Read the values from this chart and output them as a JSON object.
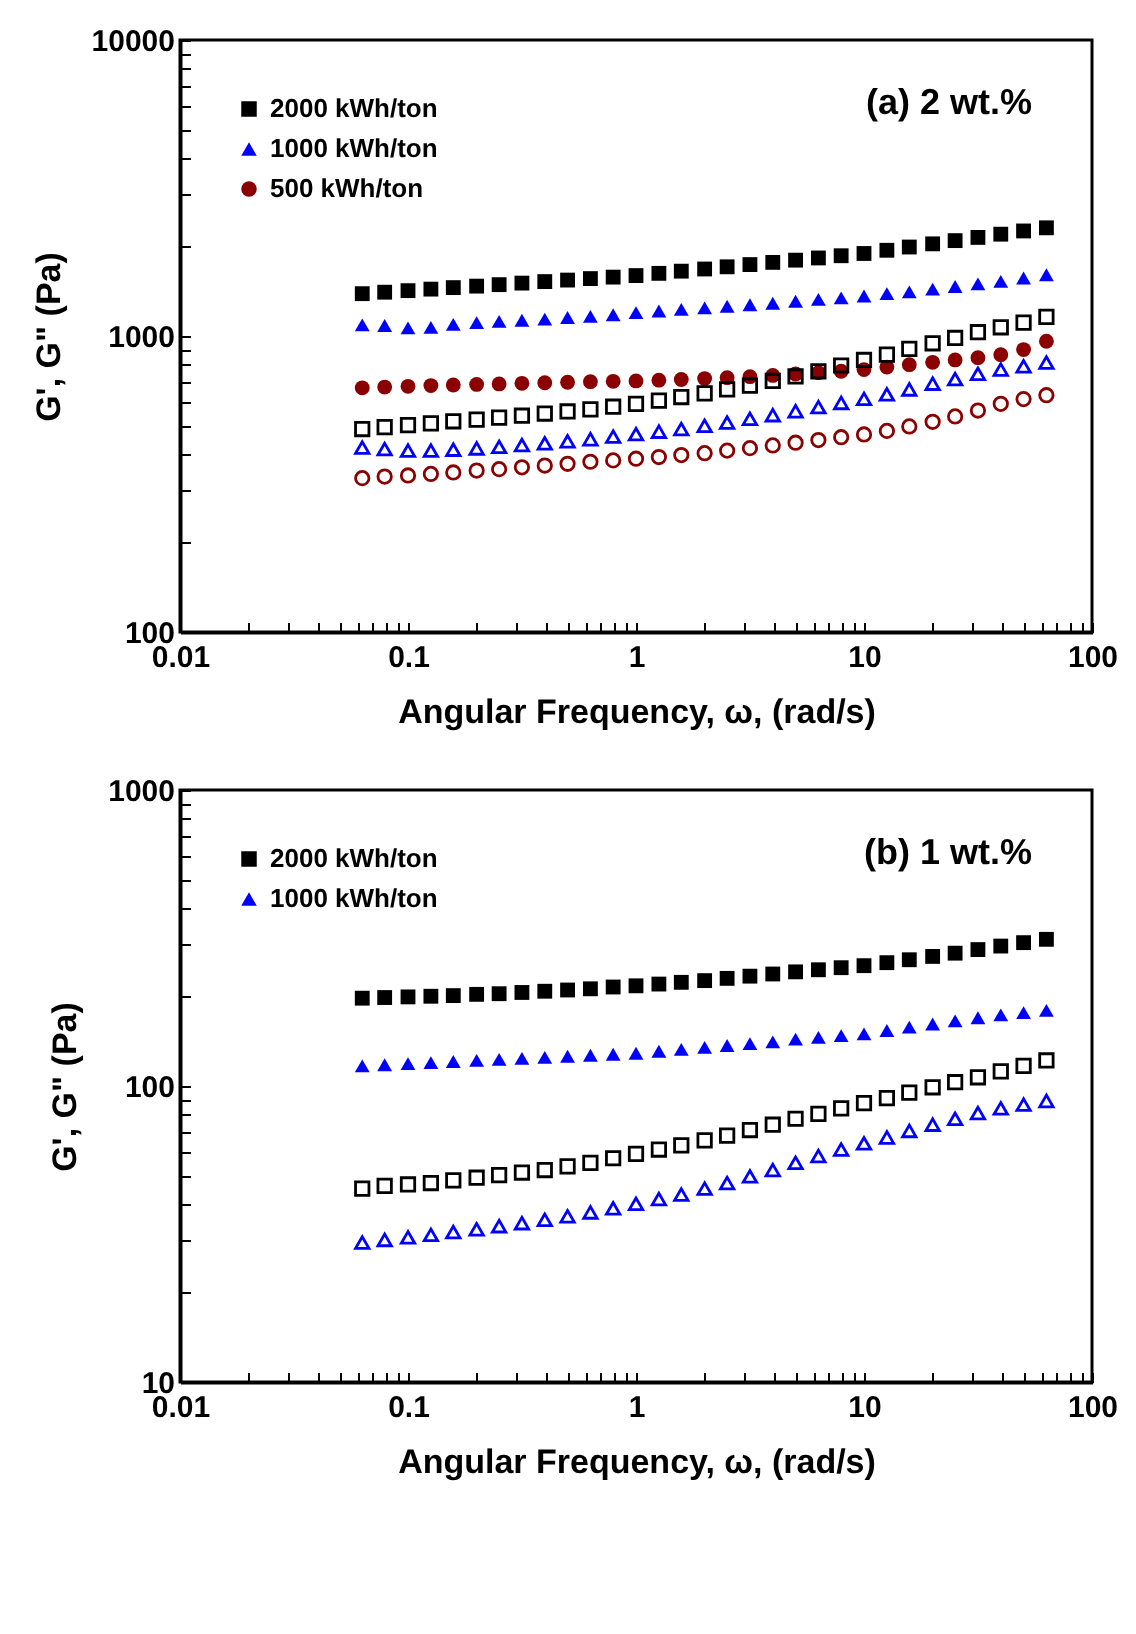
{
  "chart_data": [
    {
      "type": "scatter",
      "xlabel": "Angular Frequency, ω, (rad/s)",
      "ylabel": "G', G\" (Pa)",
      "annotations": [
        "(a) 2 wt.%"
      ],
      "log": "xy",
      "legend": "top left",
      "xlim": [
        0.01,
        100
      ],
      "ylim": [
        100,
        10000
      ],
      "xticks": [
        0.01,
        {
          "value": 0.02,
          "label": null
        },
        {
          "value": 0.03,
          "label": null
        },
        {
          "value": 0.04,
          "label": null
        },
        {
          "value": 0.05,
          "label": null
        },
        {
          "value": 0.06,
          "label": null
        },
        {
          "value": 0.07,
          "label": null
        },
        {
          "value": 0.08,
          "label": null
        },
        {
          "value": 0.09,
          "label": null
        },
        0.1,
        {
          "value": 0.2,
          "label": null
        },
        {
          "value": 0.3,
          "label": null
        },
        {
          "value": 0.4,
          "label": null
        },
        {
          "value": 0.5,
          "label": null
        },
        {
          "value": 0.6,
          "label": null
        },
        {
          "value": 0.7,
          "label": null
        },
        {
          "value": 0.8,
          "label": null
        },
        {
          "value": 0.9,
          "label": null
        },
        1,
        {
          "value": 2,
          "label": null
        },
        {
          "value": 3,
          "label": null
        },
        {
          "value": 4,
          "label": null
        },
        {
          "value": 5,
          "label": null
        },
        {
          "value": 6,
          "label": null
        },
        {
          "value": 7,
          "label": null
        },
        {
          "value": 8,
          "label": null
        },
        {
          "value": 9,
          "label": null
        },
        10,
        {
          "value": 20,
          "label": null
        },
        {
          "value": 30,
          "label": null
        },
        {
          "value": 40,
          "label": null
        },
        {
          "value": 50,
          "label": null
        },
        {
          "value": 60,
          "label": null
        },
        {
          "value": 70,
          "label": null
        },
        {
          "value": 80,
          "label": null
        },
        {
          "value": 90,
          "label": null
        },
        100
      ],
      "yticks": [
        100,
        {
          "value": 200,
          "label": null
        },
        {
          "value": 300,
          "label": null
        },
        {
          "value": 400,
          "label": null
        },
        {
          "value": 500,
          "label": null
        },
        {
          "value": 600,
          "label": null
        },
        {
          "value": 700,
          "label": null
        },
        {
          "value": 800,
          "label": null
        },
        {
          "value": 900,
          "label": null
        },
        1000,
        {
          "value": 2000,
          "label": null
        },
        {
          "value": 3000,
          "label": null
        },
        {
          "value": 4000,
          "label": null
        },
        {
          "value": 5000,
          "label": null
        },
        {
          "value": 6000,
          "label": null
        },
        {
          "value": 7000,
          "label": null
        },
        {
          "value": 8000,
          "label": null
        },
        {
          "value": 9000,
          "label": null
        },
        10000
      ],
      "x": [
        0.063,
        0.079,
        0.1,
        0.126,
        0.158,
        0.2,
        0.251,
        0.316,
        0.398,
        0.501,
        0.631,
        0.794,
        1,
        1.26,
        1.58,
        2,
        2.51,
        3.16,
        3.98,
        5.01,
        6.31,
        7.94,
        10,
        12.6,
        15.8,
        20,
        25.1,
        31.6,
        39.8,
        50.1,
        63.1
      ],
      "series": [
        {
          "name": "2000 kWh/ton",
          "color": "#000000",
          "marker": "square",
          "values": [
            1390,
            1406,
            1423,
            1440,
            1457,
            1474,
            1491,
            1509,
            1527,
            1545,
            1563,
            1581,
            1600,
            1628,
            1656,
            1684,
            1713,
            1743,
            1773,
            1804,
            1835,
            1867,
            1900,
            1948,
            1998,
            2048,
            2100,
            2153,
            2208,
            2264,
            2320
          ]
        },
        {
          "name": "1000 kWh/ton",
          "color": "#0000ff",
          "marker": "triangle",
          "values": [
            1090,
            1085,
            1065,
            1070,
            1095,
            1110,
            1120,
            1130,
            1140,
            1155,
            1165,
            1180,
            1200,
            1215,
            1230,
            1245,
            1260,
            1275,
            1290,
            1310,
            1330,
            1345,
            1365,
            1390,
            1410,
            1440,
            1470,
            1500,
            1530,
            1570,
            1610
          ]
        },
        {
          "name": "500 kWh/ton",
          "color": "#8b0000",
          "marker": "circle",
          "values": [
            668,
            672,
            676,
            680,
            683,
            686,
            689,
            692,
            695,
            698,
            701,
            703,
            705,
            709,
            713,
            718,
            723,
            729,
            736,
            744,
            752,
            760,
            770,
            785,
            800,
            815,
            830,
            845,
            865,
            900,
            960
          ]
        },
        {
          "color": "#000000",
          "marker": "square",
          "values": [
            485,
            492,
            500,
            507,
            515,
            522,
            530,
            538,
            547,
            556,
            565,
            577,
            590,
            605,
            622,
            640,
            660,
            680,
            705,
            730,
            760,
            795,
            830,
            865,
            905,
            945,
            985,
            1030,
            1070,
            1110,
            1160
          ]
        },
        {
          "color": "#0000ff",
          "marker": "triangle",
          "values": [
            420,
            415,
            410,
            410,
            413,
            417,
            422,
            428,
            434,
            441,
            448,
            457,
            466,
            475,
            485,
            497,
            510,
            525,
            540,
            557,
            575,
            594,
            613,
            635,
            660,
            690,
            715,
            745,
            770,
            790,
            813
          ]
        },
        {
          "color": "#8b0000",
          "marker": "circle",
          "values": [
            331,
            335,
            338,
            342,
            346,
            351,
            355,
            360,
            365,
            370,
            376,
            380,
            385,
            390,
            396,
            402,
            410,
            418,
            427,
            436,
            445,
            455,
            465,
            478,
            495,
            513,
            535,
            560,
            590,
            612,
            631
          ]
        }
      ]
    },
    {
      "type": "scatter",
      "xlabel": "Angular Frequency, ω, (rad/s)",
      "ylabel": "G', G\" (Pa)",
      "annotations": [
        "(b) 1 wt.%"
      ],
      "log": "xy",
      "legend": "top left",
      "xlim": [
        0.01,
        100
      ],
      "ylim": [
        10,
        1000
      ],
      "xticks": [
        0.01,
        {
          "value": 0.02,
          "label": null
        },
        {
          "value": 0.03,
          "label": null
        },
        {
          "value": 0.04,
          "label": null
        },
        {
          "value": 0.05,
          "label": null
        },
        {
          "value": 0.06,
          "label": null
        },
        {
          "value": 0.07,
          "label": null
        },
        {
          "value": 0.08,
          "label": null
        },
        {
          "value": 0.09,
          "label": null
        },
        0.1,
        {
          "value": 0.2,
          "label": null
        },
        {
          "value": 0.3,
          "label": null
        },
        {
          "value": 0.4,
          "label": null
        },
        {
          "value": 0.5,
          "label": null
        },
        {
          "value": 0.6,
          "label": null
        },
        {
          "value": 0.7,
          "label": null
        },
        {
          "value": 0.8,
          "label": null
        },
        {
          "value": 0.9,
          "label": null
        },
        1,
        {
          "value": 2,
          "label": null
        },
        {
          "value": 3,
          "label": null
        },
        {
          "value": 4,
          "label": null
        },
        {
          "value": 5,
          "label": null
        },
        {
          "value": 6,
          "label": null
        },
        {
          "value": 7,
          "label": null
        },
        {
          "value": 8,
          "label": null
        },
        {
          "value": 9,
          "label": null
        },
        10,
        {
          "value": 20,
          "label": null
        },
        {
          "value": 30,
          "label": null
        },
        {
          "value": 40,
          "label": null
        },
        {
          "value": 50,
          "label": null
        },
        {
          "value": 60,
          "label": null
        },
        {
          "value": 70,
          "label": null
        },
        {
          "value": 80,
          "label": null
        },
        {
          "value": 90,
          "label": null
        },
        100
      ],
      "yticks": [
        10,
        {
          "value": 20,
          "label": null
        },
        {
          "value": 30,
          "label": null
        },
        {
          "value": 40,
          "label": null
        },
        {
          "value": 50,
          "label": null
        },
        {
          "value": 60,
          "label": null
        },
        {
          "value": 70,
          "label": null
        },
        {
          "value": 80,
          "label": null
        },
        {
          "value": 90,
          "label": null
        },
        100,
        {
          "value": 200,
          "label": null
        },
        {
          "value": 300,
          "label": null
        },
        {
          "value": 400,
          "label": null
        },
        {
          "value": 500,
          "label": null
        },
        {
          "value": 600,
          "label": null
        },
        {
          "value": 700,
          "label": null
        },
        {
          "value": 800,
          "label": null
        },
        {
          "value": 900,
          "label": null
        },
        1000
      ],
      "x": [
        0.063,
        0.079,
        0.1,
        0.126,
        0.158,
        0.2,
        0.251,
        0.316,
        0.398,
        0.501,
        0.631,
        0.794,
        1,
        1.26,
        1.58,
        2,
        2.51,
        3.16,
        3.98,
        5.01,
        6.31,
        7.94,
        10,
        12.6,
        15.8,
        20,
        25.1,
        31.6,
        39.8,
        50.1,
        63.1
      ],
      "series": [
        {
          "name": "2000 kWh/ton",
          "color": "#000000",
          "marker": "square",
          "values": [
            198,
            199,
            200,
            201,
            202,
            204,
            205,
            207,
            209,
            211,
            213,
            216,
            218,
            221,
            224,
            227,
            231,
            235,
            239,
            243,
            247,
            251,
            255,
            261,
            267,
            274,
            281,
            289,
            297,
            305,
            313
          ]
        },
        {
          "name": "1000 kWh/ton",
          "color": "#0000ff",
          "marker": "triangle",
          "values": [
            117,
            118,
            119,
            120,
            121,
            122,
            123,
            124,
            125,
            126,
            127,
            128,
            129,
            131,
            133,
            135,
            137,
            139,
            141,
            144,
            146,
            148,
            150,
            154,
            158,
            162,
            166,
            170,
            174,
            177,
            180
          ]
        },
        {
          "color": "#000000",
          "marker": "square",
          "values": [
            45,
            46,
            46.5,
            47,
            48,
            49,
            50,
            51,
            52,
            53.5,
            55,
            57,
            59,
            61,
            63,
            65.5,
            68,
            71,
            74,
            77.5,
            80.5,
            84,
            87.5,
            91,
            95,
            99,
            103,
            107,
            112,
            117,
            122
          ]
        },
        {
          "color": "#0000ff",
          "marker": "triangle",
          "values": [
            29.6,
            30.2,
            30.8,
            31.4,
            32.1,
            32.8,
            33.6,
            34.4,
            35.3,
            36.3,
            37.4,
            38.6,
            40,
            41.5,
            43,
            45,
            47,
            49.5,
            52,
            55,
            58,
            61,
            64,
            67,
            70.5,
            74,
            77.5,
            81,
            84,
            86.5,
            89
          ]
        }
      ]
    }
  ]
}
